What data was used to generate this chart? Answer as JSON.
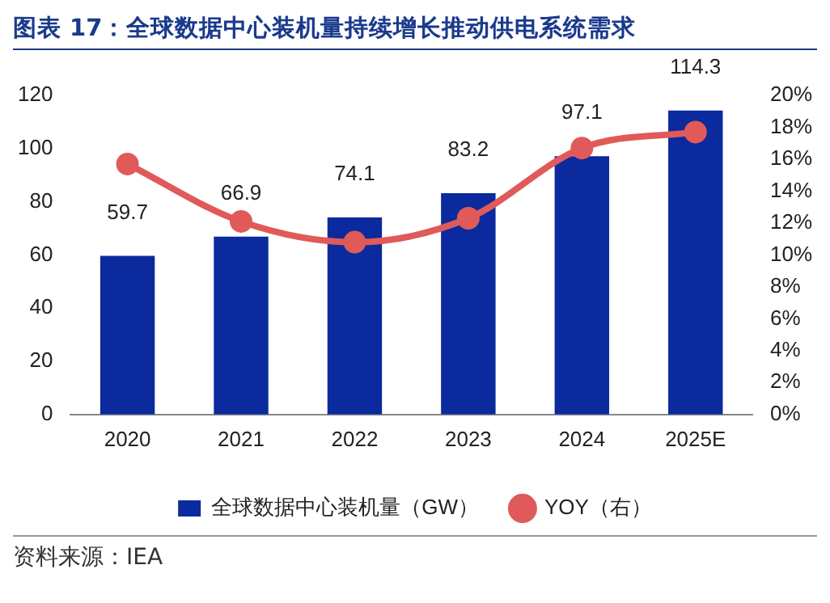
{
  "chart_data": {
    "type": "bar",
    "title": "图表 17：全球数据中心装机量持续增长推动供电系统需求",
    "categories": [
      "2020",
      "2021",
      "2022",
      "2023",
      "2024",
      "2025E"
    ],
    "series": [
      {
        "name": "全球数据中心装机量（GW）",
        "color": "#0a2a9e",
        "values": [
          59.7,
          66.9,
          74.1,
          83.2,
          97.1,
          114.3
        ],
        "value_labels": [
          "59.7",
          "66.9",
          "74.1",
          "83.2",
          "97.1",
          "114.3"
        ]
      },
      {
        "name": "YOY（右）",
        "type": "line",
        "axis": "y2",
        "color": "#e05a5a",
        "values": [
          15.7,
          12.1,
          10.8,
          12.3,
          16.7,
          17.7
        ]
      }
    ],
    "ylim": [
      0,
      120
    ],
    "yticks": [
      0,
      20,
      40,
      60,
      80,
      100,
      120
    ],
    "y2lim": [
      0,
      20
    ],
    "y2ticks": [
      {
        "value": 0,
        "label": "0%"
      },
      {
        "value": 2,
        "label": "2%"
      },
      {
        "value": 4,
        "label": "4%"
      },
      {
        "value": 6,
        "label": "6%"
      },
      {
        "value": 8,
        "label": "8%"
      },
      {
        "value": 10,
        "label": "10%"
      },
      {
        "value": 12,
        "label": "12%"
      },
      {
        "value": 14,
        "label": "14%"
      },
      {
        "value": 16,
        "label": "16%"
      },
      {
        "value": 18,
        "label": "18%"
      },
      {
        "value": 20,
        "label": "20%"
      }
    ],
    "grid": false,
    "legend": "bottom",
    "marker": "circle",
    "line_style": "solid",
    "annotations": [
      "资料来源：IEA"
    ]
  }
}
